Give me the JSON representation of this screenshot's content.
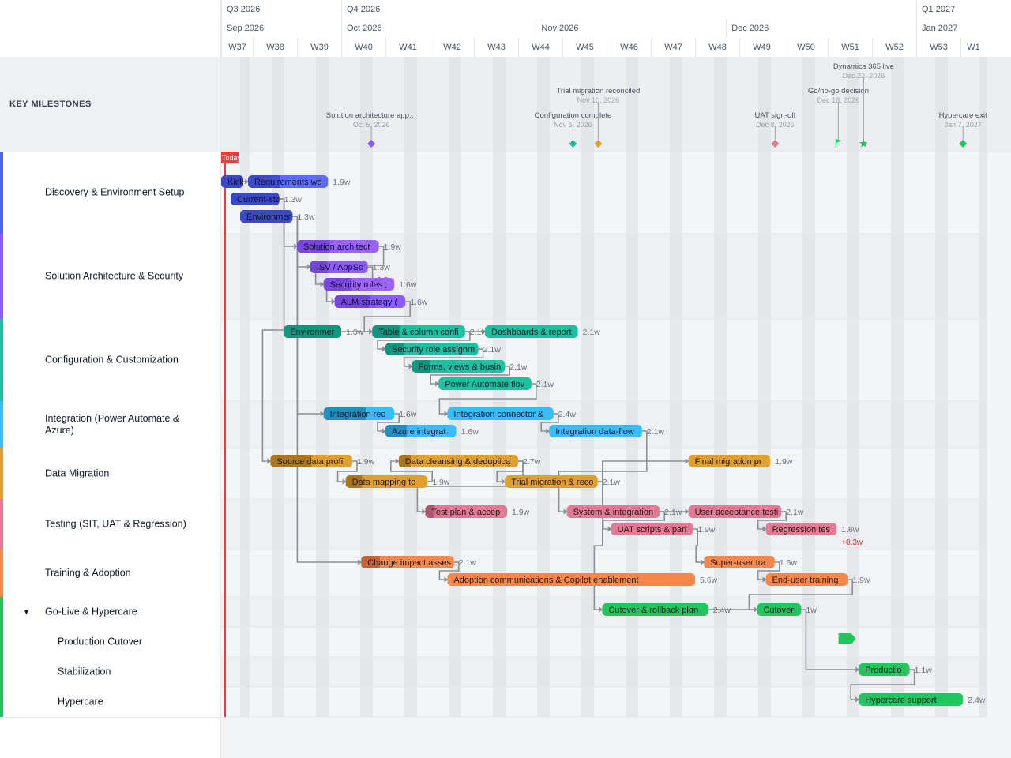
{
  "header": {
    "quarters": [
      {
        "label": "Q3 2026",
        "start": 0,
        "end": 3
      },
      {
        "label": "Q4 2026",
        "start": 3,
        "end": 16
      },
      {
        "label": "Q1 2027",
        "start": 16,
        "end": 17
      }
    ],
    "months": [
      {
        "label": "Sep 2026",
        "start": 0,
        "end": 3
      },
      {
        "label": "Oct 2026",
        "start": 3,
        "end": 7.4
      },
      {
        "label": "Nov 2026",
        "start": 7.4,
        "end": 11.7
      },
      {
        "label": "Dec 2026",
        "start": 11.7,
        "end": 16
      },
      {
        "label": "Jan 2027",
        "start": 16,
        "end": 17
      }
    ],
    "weeks": [
      "W37",
      "W38",
      "W39",
      "W40",
      "W41",
      "W42",
      "W43",
      "W44",
      "W45",
      "W46",
      "W47",
      "W48",
      "W49",
      "W50",
      "W51",
      "W52",
      "W53",
      "W1"
    ]
  },
  "milestones_label": "KEY MILESTONES",
  "today_label": "Today",
  "milestones": [
    {
      "title": "Solution architecture app…",
      "date": "Oct 5, 2026",
      "w": 3.68,
      "shape": "diamond",
      "color": "#8b5cf6",
      "level": 0
    },
    {
      "title": "Configuration complete",
      "date": "Nov 6, 2026",
      "w": 8.24,
      "shape": "diamond",
      "color": "#1fbf9f",
      "level": 0
    },
    {
      "title": "Trial migration reconciled",
      "date": "Nov 10, 2026",
      "w": 8.81,
      "shape": "diamond",
      "color": "#e0a030",
      "level": 1
    },
    {
      "title": "UAT sign-off",
      "date": "Dec 8, 2026",
      "w": 12.81,
      "shape": "diamond",
      "color": "#e07a95",
      "level": 0
    },
    {
      "title": "Go/no-go decision",
      "date": "Dec 18, 2026",
      "w": 14.24,
      "shape": "flag",
      "color": "#22c55e",
      "level": 1
    },
    {
      "title": "Dynamics 365 live",
      "date": "Dec 22, 2026",
      "w": 14.81,
      "shape": "star",
      "color": "#22c55e",
      "level": 2
    },
    {
      "title": "Hypercare exit",
      "date": "Jan 7, 2027",
      "w": 17.1,
      "shape": "diamond",
      "color": "#22c55e",
      "level": 0
    }
  ],
  "groups": [
    {
      "label": "Discovery & Environment Setup",
      "color": "#4f63e6",
      "sub": false
    },
    {
      "label": "Solution Architecture & Security",
      "color": "#8b5cf6",
      "sub": false
    },
    {
      "label": "Configuration & Customization",
      "color": "#1fbf9f",
      "sub": false
    },
    {
      "label": "Integration (Power Automate & Azure)",
      "color": "#38bdf8",
      "sub": false
    },
    {
      "label": "Data Migration",
      "color": "#e0a030",
      "sub": false
    },
    {
      "label": "Testing (SIT, UAT & Regression)",
      "color": "#e07a95",
      "sub": false
    },
    {
      "label": "Training & Adoption",
      "color": "#f2884b",
      "sub": false
    },
    {
      "label": "Go-Live & Hypercare",
      "color": "#22c55e",
      "sub": false,
      "caret": "▼"
    },
    {
      "label": "Production Cutover",
      "color": "#22c55e",
      "sub": true
    },
    {
      "label": "Stabilization",
      "color": "#22c55e",
      "sub": true
    },
    {
      "label": "Hypercare",
      "color": "#22c55e",
      "sub": true
    }
  ],
  "tasks": [
    {
      "id": "t1",
      "label": "Kickc",
      "duration": "",
      "start": 0,
      "len": 0.7,
      "color": "#4f63e6",
      "dark": "#3440b5",
      "row": "a",
      "prog": 1
    },
    {
      "id": "t2",
      "label": "Requirements wo",
      "duration": "1.9w",
      "start": 0.85,
      "len": 1.85,
      "color": "#5b6ef0",
      "dark": "#3440b5",
      "row": "a",
      "prog": 0.4
    },
    {
      "id": "t3",
      "label": "Current-sta",
      "duration": "1.3w",
      "start": 0.3,
      "len": 1.3,
      "color": "#4f63e6",
      "dark": "#3440b5",
      "row": "b",
      "prog": 1
    },
    {
      "id": "t4",
      "label": "Environmer",
      "duration": "1.3w",
      "start": 0.6,
      "len": 1.3,
      "color": "#4f63e6",
      "dark": "#3440b5",
      "row": "c",
      "prog": 1
    },
    {
      "id": "t5",
      "label": "Solution architect",
      "duration": "1.9w",
      "start": 2,
      "len": 1.85,
      "color": "#9b63f5",
      "dark": "#6d3fd0",
      "row": "d",
      "prog": 0.4
    },
    {
      "id": "t6",
      "label": "ISV / AppSc",
      "duration": "1.3w",
      "start": 2.3,
      "len": 1.3,
      "color": "#8b5cf6",
      "dark": "#6d3fd0",
      "row": "e",
      "prog": 0.3,
      "delta": "+0.3w"
    },
    {
      "id": "t7",
      "label": "Security roles ;",
      "duration": "1.6w",
      "start": 2.6,
      "len": 1.6,
      "color": "#9b63f5",
      "dark": "#6d3fd0",
      "row": "f",
      "prog": 0.4
    },
    {
      "id": "t8",
      "label": "ALM strategy (",
      "duration": "1.6w",
      "start": 2.85,
      "len": 1.6,
      "color": "#8b5cf6",
      "dark": "#6d3fd0",
      "row": "g",
      "prog": 0.5
    },
    {
      "id": "t9",
      "label": "Environmer",
      "duration": "1.3w",
      "start": 1.7,
      "len": 1.3,
      "color": "#1fbf9f",
      "dark": "#0f8a72",
      "row": "h",
      "prog": 1
    },
    {
      "id": "t10",
      "label": "Table & column confi",
      "duration": "2.1w",
      "start": 3.7,
      "len": 2.1,
      "color": "#1fbf9f",
      "dark": "#0f8a72",
      "row": "h",
      "prog": 0.3
    },
    {
      "id": "t11",
      "label": "Dashboards & report",
      "duration": "2.1w",
      "start": 6.25,
      "len": 2.1,
      "color": "#1fbf9f",
      "dark": "#0f8a72",
      "row": "h",
      "prog": 0
    },
    {
      "id": "t12",
      "label": "Security role assignm",
      "duration": "2.1w",
      "start": 4,
      "len": 2.1,
      "color": "#1fbf9f",
      "dark": "#0f8a72",
      "row": "i",
      "prog": 0.2
    },
    {
      "id": "t13",
      "label": "Forms, views & busin",
      "duration": "2.1w",
      "start": 4.6,
      "len": 2.1,
      "color": "#1fbf9f",
      "dark": "#0f8a72",
      "row": "j",
      "prog": 0.2
    },
    {
      "id": "t14",
      "label": "Power Automate flov",
      "duration": "2.1w",
      "start": 5.2,
      "len": 2.1,
      "color": "#1fbf9f",
      "dark": "#0f8a72",
      "row": "k",
      "prog": 0
    },
    {
      "id": "t15",
      "label": "Integration rec",
      "duration": "1.6w",
      "start": 2.6,
      "len": 1.6,
      "color": "#38bdf8",
      "dark": "#1d7fae",
      "row": "l",
      "prog": 0.6
    },
    {
      "id": "t16",
      "label": "Integration connector &",
      "duration": "2.4w",
      "start": 5.4,
      "len": 2.4,
      "color": "#38bdf8",
      "dark": "#1d7fae",
      "row": "l",
      "prog": 0
    },
    {
      "id": "t17",
      "label": "Azure integrat",
      "duration": "1.6w",
      "start": 4,
      "len": 1.6,
      "color": "#38bdf8",
      "dark": "#1d7fae",
      "row": "m",
      "prog": 0.3
    },
    {
      "id": "t18",
      "label": "Integration data-flow",
      "duration": "2.1w",
      "start": 7.7,
      "len": 2.1,
      "color": "#38bdf8",
      "dark": "#1d7fae",
      "row": "m",
      "prog": 0
    },
    {
      "id": "t19",
      "label": "Source data profil",
      "duration": "1.9w",
      "start": 1.4,
      "len": 1.85,
      "color": "#e0a030",
      "dark": "#9a6a18",
      "row": "n",
      "prog": 0.5
    },
    {
      "id": "t20",
      "label": "Data cleansing & deduplica",
      "duration": "2.7w",
      "start": 4.3,
      "len": 2.7,
      "color": "#e0a030",
      "dark": "#9a6a18",
      "row": "n",
      "prog": 0.1
    },
    {
      "id": "t21",
      "label": "Final migration pr",
      "duration": "1.9w",
      "start": 10.85,
      "len": 1.85,
      "color": "#e0a030",
      "dark": "#9a6a18",
      "row": "n",
      "prog": 0
    },
    {
      "id": "t22",
      "label": "Data mapping to",
      "duration": "1.9w",
      "start": 3.1,
      "len": 1.85,
      "color": "#e0a030",
      "dark": "#9a6a18",
      "row": "o",
      "prog": 0.2
    },
    {
      "id": "t23",
      "label": "Trial migration & reco",
      "duration": "2.1w",
      "start": 6.7,
      "len": 2.1,
      "color": "#e0a030",
      "dark": "#9a6a18",
      "row": "o",
      "prog": 0
    },
    {
      "id": "t24",
      "label": "Test plan & accep",
      "duration": "1.9w",
      "start": 4.9,
      "len": 1.85,
      "color": "#e07a95",
      "dark": "#9e4b63",
      "row": "p",
      "prog": 0.1
    },
    {
      "id": "t25",
      "label": "System & integration",
      "duration": "2.1w",
      "start": 8.1,
      "len": 2.1,
      "color": "#e07a95",
      "dark": "#9e4b63",
      "row": "p",
      "prog": 0
    },
    {
      "id": "t26",
      "label": "User acceptance testi",
      "duration": "2.1w",
      "start": 10.85,
      "len": 2.1,
      "color": "#e07a95",
      "dark": "#9e4b63",
      "row": "p",
      "prog": 0
    },
    {
      "id": "t27",
      "label": "UAT scripts & pari",
      "duration": "1.9w",
      "start": 9.1,
      "len": 1.85,
      "color": "#e07a95",
      "dark": "#9e4b63",
      "row": "q",
      "prog": 0
    },
    {
      "id": "t28",
      "label": "Regression tes",
      "duration": "1.6w",
      "start": 12.6,
      "len": 1.6,
      "color": "#e07a95",
      "dark": "#9e4b63",
      "row": "q",
      "prog": 0,
      "delta": "+0.3w"
    },
    {
      "id": "t29",
      "label": "Change impact asses",
      "duration": "2.1w",
      "start": 3.45,
      "len": 2.1,
      "color": "#f2884b",
      "dark": "#b5572a",
      "row": "r",
      "prog": 0.2
    },
    {
      "id": "t30",
      "label": "Super-user tra",
      "duration": "1.6w",
      "start": 11.2,
      "len": 1.6,
      "color": "#f2884b",
      "dark": "#b5572a",
      "row": "r",
      "prog": 0
    },
    {
      "id": "t31",
      "label": "Adoption communications & Copilot enablement",
      "duration": "5.6w",
      "start": 5.4,
      "len": 5.6,
      "color": "#f2884b",
      "dark": "#b5572a",
      "row": "s",
      "prog": 0
    },
    {
      "id": "t32",
      "label": "End-user training",
      "duration": "1.9w",
      "start": 12.6,
      "len": 1.85,
      "color": "#f2884b",
      "dark": "#b5572a",
      "row": "s",
      "prog": 0
    },
    {
      "id": "t33",
      "label": "Cutover & rollback plan",
      "duration": "2.4w",
      "start": 8.9,
      "len": 2.4,
      "color": "#22c55e",
      "dark": "#168a44",
      "row": "t",
      "prog": 0
    },
    {
      "id": "t34",
      "label": "Cutover",
      "duration": "1w",
      "start": 12.4,
      "len": 1,
      "color": "#22c55e",
      "dark": "#168a44",
      "row": "t",
      "prog": 0
    },
    {
      "id": "t35",
      "label": "Productio",
      "duration": "1.1w",
      "start": 14.7,
      "len": 1.15,
      "color": "#22c55e",
      "dark": "#168a44",
      "row": "v",
      "prog": 0
    },
    {
      "id": "t36",
      "label": "Hypercare support",
      "duration": "2.4w",
      "start": 14.7,
      "len": 2.4,
      "color": "#22c55e",
      "dark": "#168a44",
      "row": "w",
      "prog": 0
    }
  ]
}
